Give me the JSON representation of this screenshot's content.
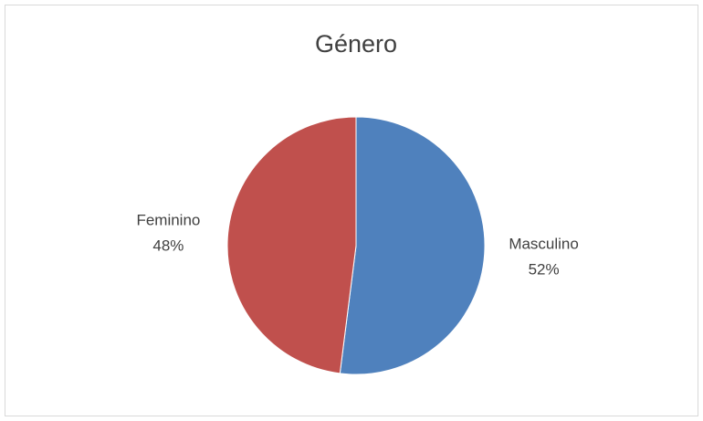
{
  "chart_data": {
    "type": "pie",
    "title": "Género",
    "categories": [
      "Masculino",
      "Feminino"
    ],
    "values": [
      52,
      48
    ],
    "value_labels": [
      "52%",
      "48%"
    ],
    "colors": [
      "#4f81bd",
      "#c0504d"
    ]
  }
}
